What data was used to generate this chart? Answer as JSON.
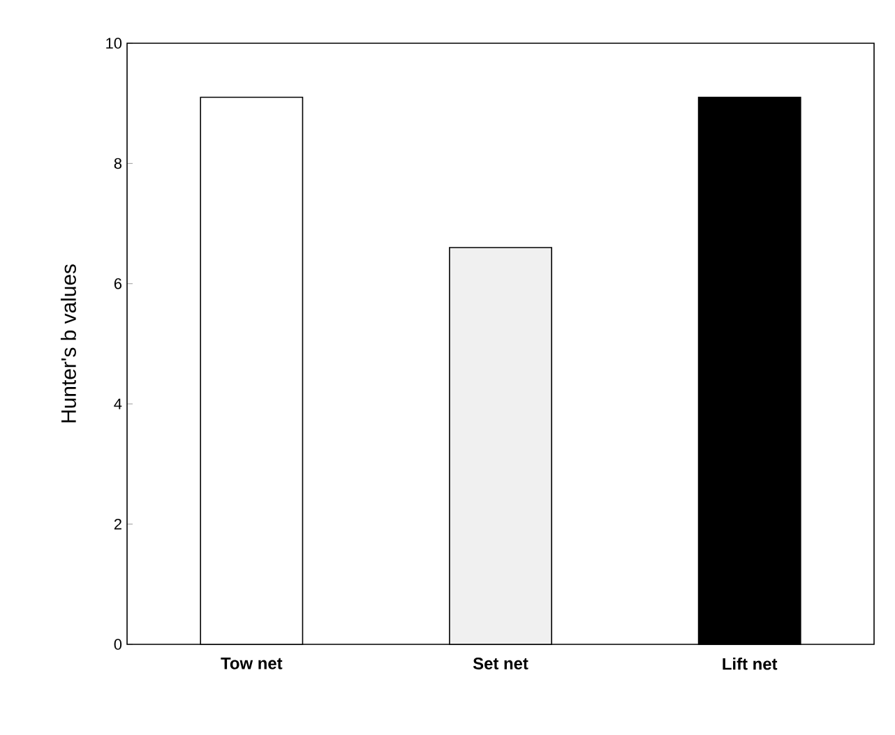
{
  "chart_data": {
    "type": "bar",
    "ylabel": "Hunter's b values",
    "categories": [
      "Tow net",
      "Set net",
      "Lift net"
    ],
    "values": [
      9.1,
      6.6,
      9.1
    ],
    "colors": [
      "#ffffff",
      "#f0f0f0",
      "#000000"
    ],
    "ylim": [
      0,
      10
    ],
    "yticks": [
      0,
      2,
      4,
      6,
      8,
      10
    ]
  }
}
